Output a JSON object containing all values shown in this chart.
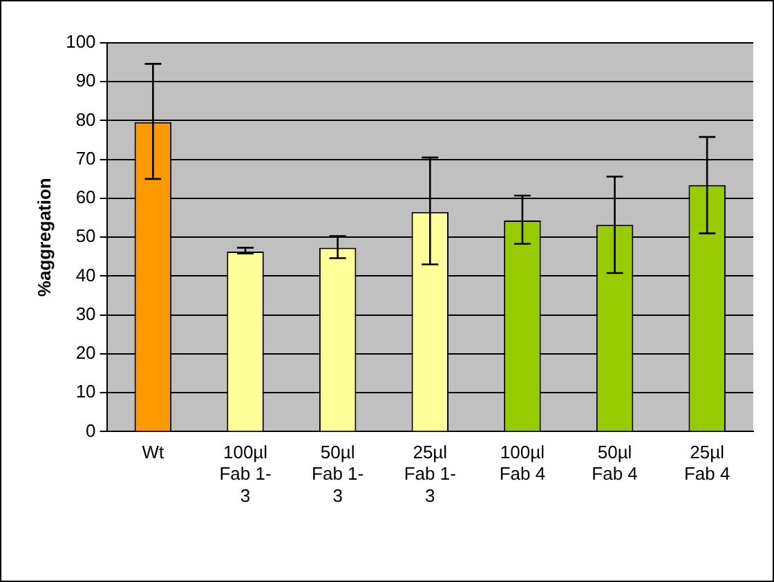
{
  "chart_data": {
    "type": "bar",
    "ylabel": "%aggregation",
    "categories": [
      "Wt",
      "100µl Fab 1-3",
      "50µl Fab 1-3",
      "25µl Fab 1-3",
      "100µl Fab 4",
      "50µl Fab 4",
      "25µl Fab 4"
    ],
    "values": [
      79.6,
      46.3,
      47.3,
      56.5,
      54.3,
      53.2,
      63.4
    ],
    "colors": [
      "#ff9900",
      "#ffff99",
      "#ffff99",
      "#ffff99",
      "#99cc00",
      "#99cc00",
      "#99cc00"
    ],
    "errors": [
      [
        65,
        94.6
      ],
      [
        45.8,
        47.3
      ],
      [
        44.6,
        50.3
      ],
      [
        43,
        70.5
      ],
      [
        48.3,
        60.7
      ],
      [
        40.8,
        65.6
      ],
      [
        51,
        75.8
      ]
    ],
    "ylim": [
      0,
      100
    ],
    "yticks": [
      0,
      10,
      20,
      30,
      40,
      50,
      60,
      70,
      80,
      90,
      100
    ],
    "grid": "y",
    "legend": false
  }
}
